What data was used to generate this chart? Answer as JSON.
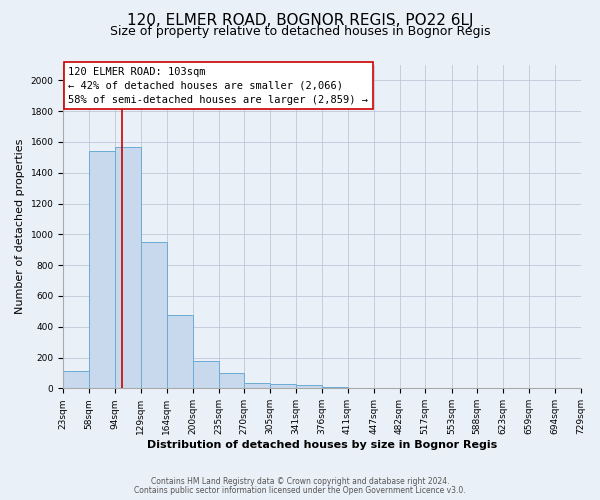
{
  "title": "120, ELMER ROAD, BOGNOR REGIS, PO22 6LJ",
  "subtitle": "Size of property relative to detached houses in Bognor Regis",
  "xlabel": "Distribution of detached houses by size in Bognor Regis",
  "ylabel": "Number of detached properties",
  "bar_color": "#c8d9ee",
  "bar_edge_color": "#6aabd4",
  "background_color": "#eaf0f8",
  "grid_color": "#c0c8d8",
  "red_line_x": 103,
  "annotation_line1": "120 ELMER ROAD: 103sqm",
  "annotation_line2": "← 42% of detached houses are smaller (2,066)",
  "annotation_line3": "58% of semi-detached houses are larger (2,859) →",
  "bin_edges": [
    23,
    58,
    94,
    129,
    164,
    200,
    235,
    270,
    305,
    341,
    376,
    411,
    447,
    482,
    517,
    553,
    588,
    623,
    659,
    694,
    729
  ],
  "bar_heights": [
    115,
    1540,
    1570,
    950,
    475,
    180,
    100,
    35,
    25,
    20,
    10,
    5,
    2,
    1,
    0,
    0,
    0,
    0,
    0,
    0
  ],
  "ylim": [
    0,
    2100
  ],
  "yticks": [
    0,
    200,
    400,
    600,
    800,
    1000,
    1200,
    1400,
    1600,
    1800,
    2000
  ],
  "footer_line1": "Contains HM Land Registry data © Crown copyright and database right 2024.",
  "footer_line2": "Contains public sector information licensed under the Open Government Licence v3.0.",
  "annotation_box_facecolor": "#ffffff",
  "annotation_box_edgecolor": "#cc0000",
  "title_fontsize": 11,
  "subtitle_fontsize": 9,
  "axis_label_fontsize": 8,
  "tick_fontsize": 6.5,
  "annotation_fontsize": 7.5,
  "footer_fontsize": 5.5
}
